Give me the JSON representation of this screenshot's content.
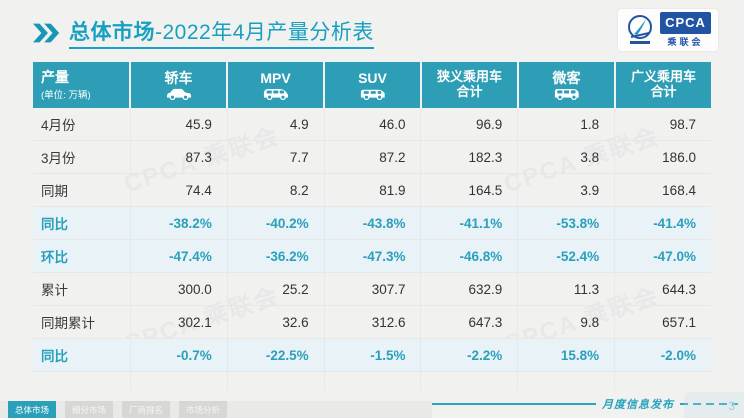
{
  "page": {
    "title_prefix": "总体市场",
    "title_suffix": "-2022年4月产量分析表",
    "footer_script": "月度信息发布",
    "page_number": "3"
  },
  "logo": {
    "badge": "CPCA",
    "sub": "乘联会"
  },
  "colors": {
    "teal_header": "#2d9eb5",
    "teal_text": "#2aa0bd",
    "highlight_bg": "#e8f2f7",
    "title_teal": "#17a0c2",
    "logo_blue": "#2155a4"
  },
  "watermark": "CPCA 乘联会",
  "table": {
    "header": {
      "col0_title": "产量",
      "col0_unit": "(单位: 万辆)",
      "columns": [
        {
          "label": "轿车",
          "line2": "",
          "icon": "sedan-icon"
        },
        {
          "label": "MPV",
          "line2": "",
          "icon": "mpv-icon"
        },
        {
          "label": "SUV",
          "line2": "",
          "icon": "suv-icon"
        },
        {
          "label": "狭义乘用车",
          "line2": "合计",
          "icon": ""
        },
        {
          "label": "微客",
          "line2": "",
          "icon": "microvan-icon"
        },
        {
          "label": "广义乘用车",
          "line2": "合计",
          "icon": ""
        }
      ]
    },
    "rows": [
      {
        "label": "4月份",
        "type": "normal",
        "values": [
          "45.9",
          "4.9",
          "46.0",
          "96.9",
          "1.8",
          "98.7"
        ]
      },
      {
        "label": "3月份",
        "type": "normal",
        "values": [
          "87.3",
          "7.7",
          "87.2",
          "182.3",
          "3.8",
          "186.0"
        ]
      },
      {
        "label": "同期",
        "type": "normal",
        "values": [
          "74.4",
          "8.2",
          "81.9",
          "164.5",
          "3.9",
          "168.4"
        ]
      },
      {
        "label": "同比",
        "type": "highlight",
        "values": [
          "-38.2%",
          "-40.2%",
          "-43.8%",
          "-41.1%",
          "-53.8%",
          "-41.4%"
        ]
      },
      {
        "label": "环比",
        "type": "highlight",
        "values": [
          "-47.4%",
          "-36.2%",
          "-47.3%",
          "-46.8%",
          "-52.4%",
          "-47.0%"
        ]
      },
      {
        "label": "累计",
        "type": "normal",
        "values": [
          "300.0",
          "25.2",
          "307.7",
          "632.9",
          "11.3",
          "644.3"
        ]
      },
      {
        "label": "同期累计",
        "type": "normal",
        "values": [
          "302.1",
          "32.6",
          "312.6",
          "647.3",
          "9.8",
          "657.1"
        ]
      },
      {
        "label": "同比",
        "type": "highlight",
        "values": [
          "-0.7%",
          "-22.5%",
          "-1.5%",
          "-2.2%",
          "15.8%",
          "-2.0%"
        ]
      }
    ]
  },
  "tabs": [
    {
      "label": "总体市场",
      "active": true
    },
    {
      "label": "细分市场",
      "active": false
    },
    {
      "label": "厂商排名",
      "active": false
    },
    {
      "label": "市场分析",
      "active": false
    }
  ]
}
